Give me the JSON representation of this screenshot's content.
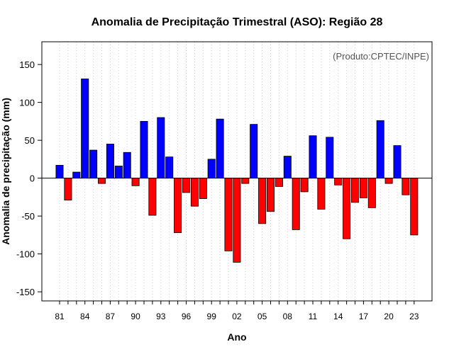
{
  "chart_data": {
    "type": "bar",
    "title": "Anomalia de Precipitação Trimestral (ASO): Região 28",
    "xlabel": "Ano",
    "ylabel": "Anomalia de precipitação (mm)",
    "credit": "(Produto:CPTEC/INPE)",
    "ylim": [
      -162,
      180
    ],
    "yticks": [
      -150,
      -100,
      -50,
      0,
      50,
      100,
      150
    ],
    "grid": "vertical dotted",
    "x": [
      1981,
      1982,
      1983,
      1984,
      1985,
      1986,
      1987,
      1988,
      1989,
      1990,
      1991,
      1992,
      1993,
      1994,
      1995,
      1996,
      1997,
      1998,
      1999,
      2000,
      2001,
      2002,
      2003,
      2004,
      2005,
      2006,
      2007,
      2008,
      2009,
      2010,
      2011,
      2012,
      2013,
      2014,
      2015,
      2016,
      2017,
      2018,
      2019,
      2020,
      2021,
      2022,
      2023
    ],
    "xtick_years": [
      1981,
      1984,
      1987,
      1990,
      1993,
      1996,
      1999,
      2002,
      2005,
      2008,
      2011,
      2014,
      2017,
      2020,
      2023
    ],
    "xtick_labels": [
      "81",
      "84",
      "87",
      "90",
      "93",
      "96",
      "99",
      "02",
      "05",
      "08",
      "11",
      "14",
      "17",
      "20",
      "23"
    ],
    "values": [
      17,
      -29,
      8,
      131,
      37,
      -7,
      45,
      16,
      34,
      -10,
      75,
      -49,
      80,
      28,
      -72,
      -19,
      -37,
      -27,
      25,
      78,
      -96,
      -111,
      -7,
      71,
      -60,
      -44,
      -11,
      29,
      -68,
      -18,
      56,
      -41,
      54,
      -9,
      -80,
      -32,
      -26,
      -39,
      76,
      -7,
      43,
      -22,
      -75
    ],
    "colors": {
      "positive": "#0000ff",
      "negative": "#ff0000",
      "axis": "#000000",
      "grid": "#cccccc"
    }
  }
}
